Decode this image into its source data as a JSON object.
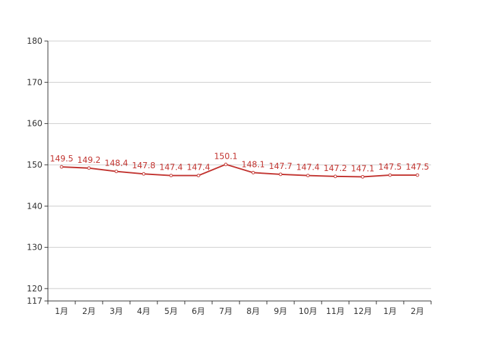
{
  "chart_data": {
    "type": "line",
    "categories": [
      "1月",
      "2月",
      "3月",
      "4月",
      "5月",
      "6月",
      "7月",
      "8月",
      "9月",
      "10月",
      "11月",
      "12月",
      "1月",
      "2月"
    ],
    "series": [
      {
        "values": [
          149.5,
          149.2,
          148.4,
          147.8,
          147.4,
          147.4,
          150.1,
          148.1,
          147.7,
          147.4,
          147.2,
          147.1,
          147.5,
          147.5
        ],
        "color": "#c23531"
      }
    ],
    "ylim": [
      117,
      180
    ],
    "yticks": [
      117,
      120,
      130,
      140,
      150,
      160,
      170,
      180
    ],
    "grid": true,
    "colors": {
      "line": "#c23531",
      "grid": "#cccccc",
      "axis": "#333333",
      "text": "#333333"
    }
  }
}
